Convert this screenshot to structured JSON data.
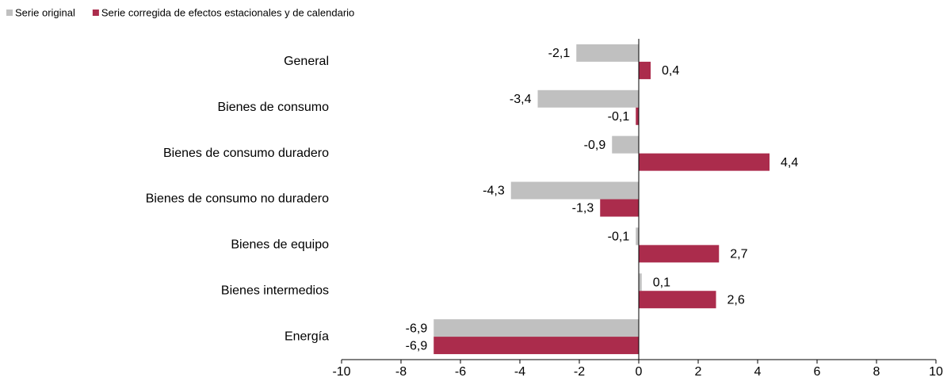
{
  "chart_data": {
    "type": "hbar",
    "categories": [
      "General",
      "Bienes de consumo",
      "Bienes de consumo duradero",
      "Bienes de consumo no duradero",
      "Bienes de equipo",
      "Bienes intermedios",
      "Energía"
    ],
    "series": [
      {
        "name": "Serie original",
        "color": "#c0c0c0",
        "values": [
          -2.1,
          -3.4,
          -0.9,
          -4.3,
          -0.1,
          0.1,
          -6.9
        ],
        "value_labels": [
          "-2,1",
          "-3,4",
          "-0,9",
          "-4,3",
          "-0,1",
          "0,1",
          "-6,9"
        ]
      },
      {
        "name": "Serie corregida de efectos estacionales y de calendario",
        "color": "#ab2c4c",
        "values": [
          0.4,
          -0.1,
          4.4,
          -1.3,
          2.7,
          2.6,
          -6.9
        ],
        "value_labels": [
          "0,4",
          "-0,1",
          "4,4",
          "-1,3",
          "2,7",
          "2,6",
          "-6,9"
        ]
      }
    ],
    "xlim": [
      -10,
      10
    ],
    "xticks": [
      -10,
      -8,
      -6,
      -4,
      -2,
      0,
      2,
      4,
      6,
      8,
      10
    ]
  }
}
